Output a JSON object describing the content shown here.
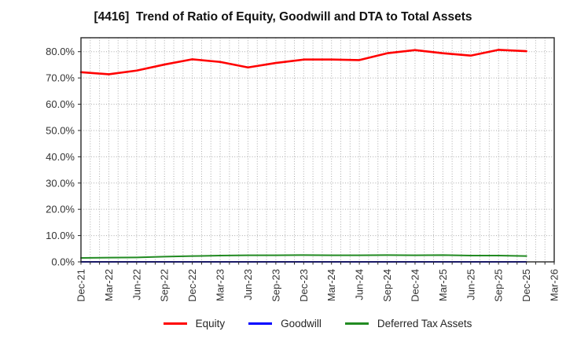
{
  "window": {
    "title": "[4416]  Trend of Ratio of Equity, Goodwill and DTA to Total Assets"
  },
  "chart_data": {
    "type": "line",
    "title": "[4416]  Trend of Ratio of Equity, Goodwill and DTA to Total Assets",
    "xlabel": "",
    "ylabel": "",
    "categories": [
      "Dec-21",
      "Mar-22",
      "Jun-22",
      "Sep-22",
      "Dec-22",
      "Mar-23",
      "Jun-23",
      "Sep-23",
      "Dec-23",
      "Mar-24",
      "Jun-24",
      "Sep-24",
      "Dec-24",
      "Mar-25",
      "Jun-25",
      "Sep-25",
      "Dec-25",
      "Mar-26"
    ],
    "series": [
      {
        "name": "Equity",
        "color": "#ff0000",
        "values": [
          72.2,
          71.4,
          72.8,
          75.1,
          77.1,
          76.1,
          74.0,
          75.7,
          77.0,
          77.0,
          76.8,
          79.4,
          80.6,
          79.4,
          78.5,
          80.7,
          80.2,
          null
        ]
      },
      {
        "name": "Goodwill",
        "color": "#0000ff",
        "values": [
          0.0,
          0.0,
          0.0,
          0.0,
          0.0,
          0.0,
          0.0,
          0.0,
          0.0,
          0.0,
          0.0,
          0.0,
          0.0,
          0.0,
          0.0,
          0.0,
          0.0,
          null
        ]
      },
      {
        "name": "Deferred Tax Assets",
        "color": "#228b22",
        "values": [
          1.5,
          1.6,
          1.7,
          2.0,
          2.2,
          2.4,
          2.5,
          2.5,
          2.6,
          2.5,
          2.5,
          2.6,
          2.5,
          2.6,
          2.4,
          2.4,
          2.2,
          null
        ]
      }
    ],
    "ylim": [
      0,
      85.3
    ],
    "ytick_values": [
      0,
      10,
      20,
      30,
      40,
      50,
      60,
      70,
      80
    ],
    "ytick_labels": [
      "0.0%",
      "10.0%",
      "20.0%",
      "30.0%",
      "40.0%",
      "50.0%",
      "60.0%",
      "70.0%",
      "80.0%"
    ],
    "grid": "dotted gray; horizontal every 10%, vertical monthly (2 minor between quarterly ticks)",
    "legend_position": "bottom center, below x-axis labels"
  },
  "colors": {
    "background": "#ffffff",
    "axis_spine": "#262626",
    "grid": "#ababab",
    "tick_label": "#333333",
    "title_text": "#111111"
  }
}
